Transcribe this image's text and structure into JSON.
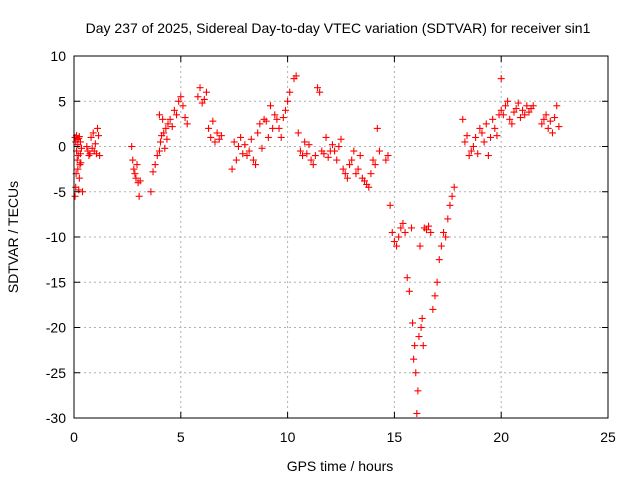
{
  "chart_data": {
    "type": "scatter",
    "title": "Day 237 of 2025, Sidereal Day-to-day VTEC variation (SDTVAR) for receiver sin1",
    "xlabel": "GPS time / hours",
    "ylabel": "SDTVAR / TECUs",
    "xlim": [
      0,
      25
    ],
    "ylim": [
      -30,
      10
    ],
    "xticks": [
      0,
      5,
      10,
      15,
      20,
      25
    ],
    "yticks": [
      -30,
      -25,
      -20,
      -15,
      -10,
      -5,
      0,
      5,
      10
    ],
    "xtick_labels": [
      "0",
      "5",
      "10",
      "15",
      "20",
      "25"
    ],
    "ytick_labels": [
      "-30",
      "-25",
      "-20",
      "-15",
      "-10",
      "-5",
      "0",
      "5",
      "10"
    ],
    "grid": true,
    "marker": "plus",
    "color": "#ff0000",
    "series": [
      {
        "name": "SDTVAR",
        "x": [
          0.05,
          0.05,
          0.08,
          0.08,
          0.1,
          0.12,
          0.12,
          0.15,
          0.15,
          0.18,
          0.18,
          0.2,
          0.22,
          0.22,
          0.25,
          0.25,
          0.28,
          0.3,
          0.3,
          0.32,
          0.35,
          0.4,
          0.6,
          0.65,
          0.7,
          0.75,
          0.8,
          0.85,
          0.9,
          0.95,
          1.0,
          1.05,
          1.1,
          1.15,
          1.2,
          2.7,
          2.75,
          2.8,
          2.85,
          2.9,
          2.95,
          3.0,
          3.05,
          3.1,
          3.6,
          3.7,
          3.8,
          3.9,
          4.0,
          4.0,
          4.05,
          4.1,
          4.15,
          4.2,
          4.25,
          4.3,
          4.35,
          4.4,
          4.5,
          4.6,
          4.7,
          4.8,
          4.9,
          5.0,
          5.1,
          5.2,
          5.3,
          5.8,
          5.9,
          6.0,
          6.1,
          6.2,
          6.3,
          6.4,
          6.5,
          6.6,
          6.7,
          6.8,
          6.9,
          7.4,
          7.5,
          7.6,
          7.7,
          7.8,
          7.9,
          8.0,
          8.1,
          8.2,
          8.3,
          8.4,
          8.5,
          8.6,
          8.7,
          8.8,
          8.9,
          9.0,
          9.1,
          9.2,
          9.3,
          9.4,
          9.5,
          9.6,
          9.7,
          9.8,
          9.9,
          10.0,
          10.1,
          10.3,
          10.4,
          10.5,
          10.6,
          10.7,
          10.8,
          10.9,
          11.0,
          11.1,
          11.2,
          11.3,
          11.4,
          11.5,
          11.6,
          11.7,
          11.8,
          11.9,
          12.0,
          12.1,
          12.2,
          12.3,
          12.4,
          12.5,
          12.6,
          12.7,
          12.8,
          12.9,
          13.0,
          13.1,
          13.2,
          13.3,
          13.4,
          13.5,
          13.6,
          13.7,
          13.8,
          13.9,
          14.0,
          14.1,
          14.2,
          14.3,
          14.6,
          14.7,
          14.8,
          14.9,
          15.0,
          15.1,
          15.2,
          15.3,
          15.4,
          15.5,
          15.6,
          15.7,
          15.8,
          15.85,
          15.9,
          15.95,
          16.0,
          16.05,
          16.1,
          16.15,
          16.2,
          16.25,
          16.3,
          16.35,
          16.4,
          16.5,
          16.6,
          16.7,
          16.8,
          16.9,
          17.0,
          17.1,
          17.2,
          17.3,
          17.4,
          17.5,
          17.6,
          17.7,
          17.8,
          18.2,
          18.3,
          18.4,
          18.5,
          18.6,
          18.7,
          18.8,
          18.9,
          19.0,
          19.1,
          19.2,
          19.3,
          19.4,
          19.5,
          19.6,
          19.7,
          19.8,
          19.9,
          20.0,
          20.0,
          20.1,
          20.2,
          20.3,
          20.4,
          20.5,
          20.6,
          20.7,
          20.8,
          20.9,
          21.0,
          21.1,
          21.2,
          21.3,
          21.4,
          21.5,
          21.9,
          22.0,
          22.1,
          22.2,
          22.3,
          22.4,
          22.5,
          22.6,
          22.7
        ],
        "y": [
          -5.5,
          1.0,
          -4.5,
          0.5,
          -3.0,
          -0.5,
          1.2,
          -1.5,
          0.8,
          -2.5,
          0.2,
          -1.0,
          -4.8,
          0.9,
          -3.5,
          1.1,
          -2.0,
          -0.8,
          0.5,
          -1.8,
          -0.2,
          -5.0,
          0.0,
          -0.5,
          -1.0,
          -0.8,
          1.0,
          -0.2,
          1.5,
          -0.5,
          0.3,
          -0.8,
          2.0,
          1.2,
          -1.0,
          0.0,
          -1.5,
          -2.5,
          -3.0,
          -3.5,
          -2.0,
          -4.0,
          -5.5,
          -3.8,
          -5.0,
          -2.8,
          -2.0,
          -1.0,
          -0.5,
          3.5,
          0.5,
          1.2,
          3.0,
          1.5,
          -0.2,
          2.0,
          0.8,
          2.5,
          3.0,
          2.2,
          4.0,
          3.5,
          5.0,
          5.5,
          4.5,
          3.2,
          2.5,
          5.5,
          6.5,
          4.8,
          5.2,
          6.0,
          2.0,
          1.0,
          2.8,
          0.5,
          1.5,
          0.8,
          1.2,
          -2.5,
          0.5,
          -1.5,
          0.0,
          1.0,
          -0.8,
          0.2,
          -1.0,
          -0.5,
          0.8,
          -1.5,
          -2.0,
          1.5,
          2.5,
          -0.2,
          3.0,
          2.8,
          1.0,
          4.5,
          2.0,
          3.5,
          3.0,
          2.0,
          1.0,
          3.2,
          4.0,
          5.0,
          6.0,
          7.5,
          7.8,
          1.5,
          -0.5,
          -1.0,
          0.5,
          -0.8,
          0.2,
          -1.5,
          -2.0,
          -1.0,
          6.5,
          6.0,
          -0.5,
          -0.8,
          1.0,
          -1.2,
          -0.5,
          0.2,
          -0.5,
          -1.5,
          0.0,
          0.8,
          -2.5,
          -3.0,
          -3.5,
          -2.0,
          -1.5,
          -0.5,
          -3.0,
          -2.5,
          -1.0,
          -3.5,
          -3.8,
          -4.2,
          -4.5,
          -3.0,
          -1.5,
          -2.0,
          2.0,
          -0.5,
          -1.5,
          -1.0,
          -6.5,
          -9.5,
          -10.5,
          -11.0,
          -10.0,
          -9.0,
          -8.5,
          -9.5,
          -14.5,
          -16.0,
          -9.0,
          -19.5,
          -23.5,
          -22.0,
          -25.0,
          -29.5,
          -27.0,
          -21.0,
          -11.0,
          -20.0,
          -19.0,
          -22.0,
          -9.0,
          -9.2,
          -8.8,
          -9.5,
          -18.0,
          -16.5,
          -15.0,
          -12.5,
          -11.0,
          -9.5,
          -10.0,
          -8.0,
          -6.5,
          -5.5,
          -4.5,
          3.0,
          0.5,
          1.2,
          -1.0,
          -0.5,
          0.0,
          1.0,
          -0.8,
          2.0,
          1.5,
          0.5,
          2.5,
          -1.0,
          1.0,
          3.0,
          2.0,
          1.2,
          3.5,
          7.5,
          4.0,
          3.5,
          4.5,
          5.0,
          3.0,
          2.5,
          3.8,
          4.2,
          4.8,
          3.2,
          4.0,
          3.5,
          4.5,
          3.8,
          4.2,
          4.5,
          2.5,
          3.0,
          3.5,
          2.0,
          2.8,
          1.5,
          3.2,
          4.5,
          2.2
        ]
      }
    ]
  }
}
